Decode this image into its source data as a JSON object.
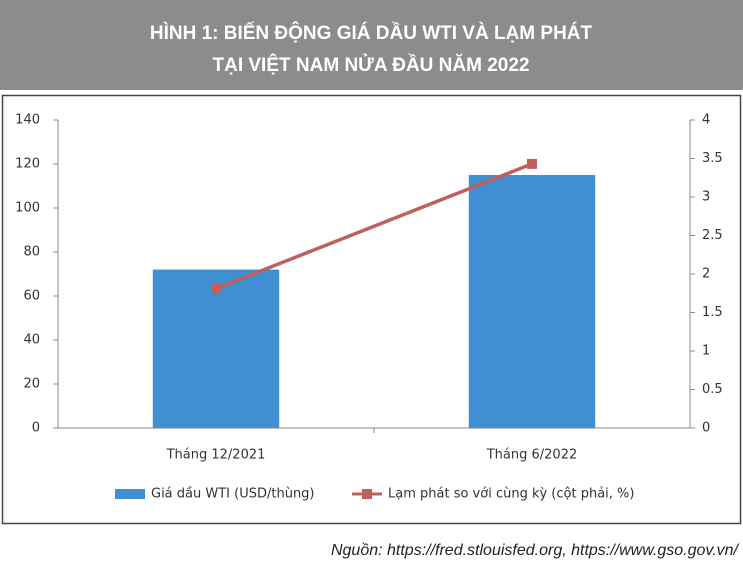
{
  "chart_data": {
    "type": "combo",
    "title": [
      "HÌNH 1: BIẾN ĐỘNG GIÁ DẦU WTI VÀ LẠM PHÁT",
      "TẠI VIỆT NAM NỬA ĐẦU NĂM 2022"
    ],
    "categories": [
      "Tháng 12/2021",
      "Tháng 6/2022"
    ],
    "series": [
      {
        "name": "Giá dầu WTI (USD/thùng)",
        "type": "bar",
        "color": "#3f8fd2",
        "values": [
          72,
          115
        ]
      },
      {
        "name": "Lạm phát so với cùng kỳ (cột phải, %)",
        "type": "line",
        "color": "#c0605e",
        "axis": "y2",
        "values": [
          1.81,
          3.43
        ]
      }
    ],
    "ylim": [
      0,
      140
    ],
    "yticks": [
      0,
      20,
      40,
      60,
      80,
      100,
      120,
      140
    ],
    "y2lim": [
      0,
      4
    ],
    "y2ticks": [
      0,
      0.5,
      1,
      1.5,
      2,
      2.5,
      3,
      3.5,
      4
    ],
    "legend": "bottom",
    "source": "Nguồn: https://fred.stlouisfed.org, https://www.gso.gov.vn/"
  }
}
